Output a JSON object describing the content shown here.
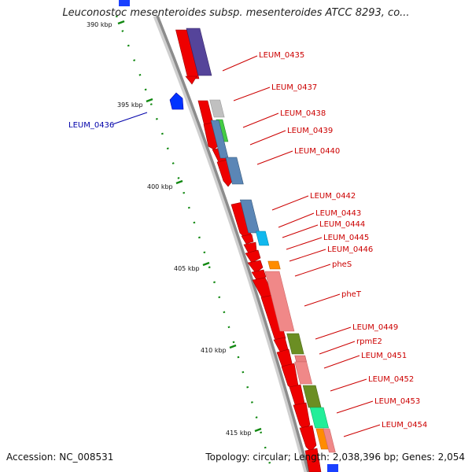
{
  "title": "Leuconostoc mesenteroides subsp. mesenteroides ATCC 8293, co...",
  "footer": {
    "accession": "Accession: NC_008531",
    "stats": "Topology: circular; Length: 2,038,396 bp; Genes: 2,054"
  },
  "colors": {
    "forward_strand": "#ff0000",
    "reverse_strand": "#0000ff",
    "label_line": "#cc0000",
    "label_line_reverse": "#0000aa",
    "tick": "#118811",
    "backbone": "#888888"
  },
  "ticks": [
    {
      "label": "390 kbp"
    },
    {
      "label": "395 kbp"
    },
    {
      "label": "400 kbp"
    },
    {
      "label": "405 kbp"
    },
    {
      "label": "410 kbp"
    },
    {
      "label": "415 kbp"
    }
  ],
  "genes": [
    {
      "name": "LEUM_0435",
      "strand": "forward"
    },
    {
      "name": "LEUM_0436",
      "strand": "reverse"
    },
    {
      "name": "LEUM_0437",
      "strand": "forward"
    },
    {
      "name": "LEUM_0438",
      "strand": "forward"
    },
    {
      "name": "LEUM_0439",
      "strand": "forward"
    },
    {
      "name": "LEUM_0440",
      "strand": "forward"
    },
    {
      "name": "LEUM_0442",
      "strand": "forward"
    },
    {
      "name": "LEUM_0443",
      "strand": "forward"
    },
    {
      "name": "LEUM_0444",
      "strand": "forward"
    },
    {
      "name": "LEUM_0445",
      "strand": "forward"
    },
    {
      "name": "LEUM_0446",
      "strand": "forward"
    },
    {
      "name": "pheS",
      "strand": "forward"
    },
    {
      "name": "pheT",
      "strand": "forward"
    },
    {
      "name": "LEUM_0449",
      "strand": "forward"
    },
    {
      "name": "rpmE2",
      "strand": "forward"
    },
    {
      "name": "LEUM_0451",
      "strand": "forward"
    },
    {
      "name": "LEUM_0452",
      "strand": "forward"
    },
    {
      "name": "LEUM_0453",
      "strand": "forward"
    },
    {
      "name": "LEUM_0454",
      "strand": "forward"
    }
  ]
}
